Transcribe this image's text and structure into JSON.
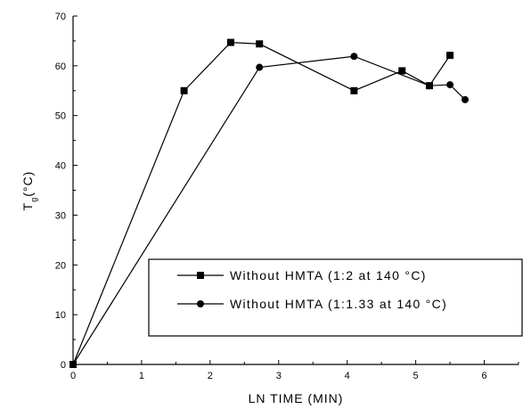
{
  "chart_data": {
    "type": "line",
    "title": "",
    "xlabel": "LN TIME (MIN)",
    "ylabel": "T",
    "ylabel_subscript": "g",
    "ylabel_unit": "(°C)",
    "xlim": [
      0,
      6.5
    ],
    "ylim": [
      0,
      70
    ],
    "xticks": [
      0,
      1,
      2,
      3,
      4,
      5,
      6
    ],
    "yticks": [
      0,
      10,
      20,
      30,
      40,
      50,
      60,
      70
    ],
    "grid": false,
    "legend_position": "bottom-right",
    "series": [
      {
        "name": "Without HMTA (1:2 at 140 °C)",
        "marker": "square",
        "color": "#000000",
        "x": [
          0,
          1.62,
          2.3,
          2.72,
          4.1,
          4.8,
          5.2,
          5.5
        ],
        "y": [
          0,
          55,
          64.7,
          64.4,
          55,
          59,
          56,
          62.1
        ]
      },
      {
        "name": "Without HMTA (1:1.33 at 140 °C)",
        "marker": "circle",
        "color": "#000000",
        "x": [
          0,
          2.72,
          4.1,
          5.2,
          5.5,
          5.72
        ],
        "y": [
          0,
          59.7,
          61.9,
          56,
          56.2,
          53.2
        ]
      }
    ]
  }
}
